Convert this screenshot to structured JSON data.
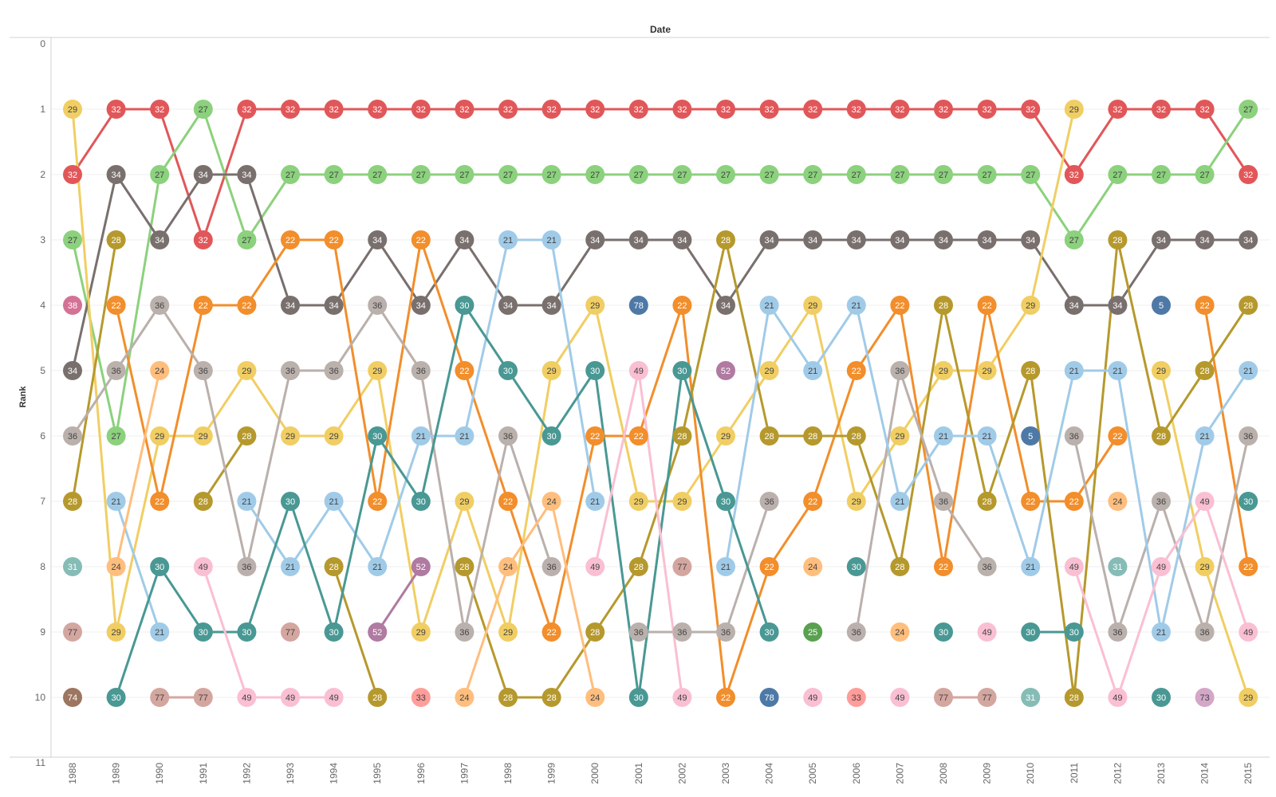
{
  "chart_data": {
    "type": "line",
    "title": "",
    "xlabel": "Date",
    "ylabel": "Rank",
    "x": [
      1988,
      1989,
      1990,
      1991,
      1992,
      1993,
      1994,
      1995,
      1996,
      1997,
      1998,
      1999,
      2000,
      2001,
      2002,
      2003,
      2004,
      2005,
      2006,
      2007,
      2008,
      2009,
      2010,
      2011,
      2012,
      2013,
      2014,
      2015
    ],
    "ylim": [
      0,
      11
    ],
    "y_reversed": true,
    "yticks": [
      0,
      1,
      2,
      3,
      4,
      5,
      6,
      7,
      8,
      9,
      10,
      11
    ],
    "grid": "horizontal",
    "point_labels": "series-id",
    "series": [
      {
        "id": "32",
        "color": "#e15759",
        "ranks": [
          2,
          1,
          1,
          3,
          1,
          1,
          1,
          1,
          1,
          1,
          1,
          1,
          1,
          1,
          1,
          1,
          1,
          1,
          1,
          1,
          1,
          1,
          1,
          2,
          1,
          1,
          1,
          2
        ]
      },
      {
        "id": "27",
        "color": "#8cd17d",
        "ranks": [
          3,
          6,
          2,
          1,
          3,
          2,
          2,
          2,
          2,
          2,
          2,
          2,
          2,
          2,
          2,
          2,
          2,
          2,
          2,
          2,
          2,
          2,
          2,
          3,
          2,
          2,
          2,
          1
        ]
      },
      {
        "id": "34",
        "color": "#79706e",
        "ranks": [
          5,
          2,
          3,
          2,
          2,
          4,
          4,
          3,
          4,
          3,
          4,
          4,
          3,
          3,
          3,
          4,
          3,
          3,
          3,
          3,
          3,
          3,
          3,
          4,
          4,
          3,
          3,
          3
        ]
      },
      {
        "id": "29",
        "color": "#f1ce63",
        "ranks": [
          1,
          9,
          6,
          6,
          5,
          6,
          6,
          5,
          9,
          7,
          9,
          5,
          4,
          7,
          7,
          6,
          5,
          4,
          7,
          6,
          5,
          5,
          4,
          1,
          null,
          5,
          8,
          10
        ]
      },
      {
        "id": "22",
        "color": "#f28e2b",
        "ranks": [
          null,
          4,
          7,
          4,
          4,
          3,
          3,
          7,
          3,
          5,
          7,
          9,
          6,
          6,
          4,
          10,
          8,
          7,
          5,
          4,
          8,
          4,
          7,
          7,
          6,
          null,
          4,
          8
        ]
      },
      {
        "id": "28",
        "color": "#b6992d",
        "ranks": [
          7,
          3,
          null,
          7,
          6,
          null,
          8,
          10,
          null,
          8,
          10,
          10,
          9,
          8,
          6,
          3,
          6,
          6,
          6,
          8,
          4,
          7,
          5,
          10,
          3,
          6,
          5,
          4
        ]
      },
      {
        "id": "36",
        "color": "#bab0ac",
        "ranks": [
          6,
          5,
          4,
          5,
          8,
          5,
          5,
          4,
          5,
          9,
          6,
          8,
          null,
          9,
          9,
          9,
          7,
          null,
          9,
          5,
          7,
          8,
          null,
          6,
          9,
          7,
          9,
          6
        ]
      },
      {
        "id": "21",
        "color": "#a0cbe8",
        "ranks": [
          null,
          7,
          9,
          null,
          7,
          8,
          7,
          8,
          6,
          6,
          3,
          3,
          7,
          null,
          null,
          8,
          4,
          5,
          4,
          7,
          6,
          6,
          8,
          5,
          5,
          9,
          6,
          5
        ]
      },
      {
        "id": "30",
        "color": "#499894",
        "ranks": [
          null,
          10,
          8,
          9,
          9,
          7,
          9,
          6,
          7,
          4,
          5,
          6,
          5,
          10,
          5,
          7,
          9,
          null,
          8,
          null,
          9,
          null,
          9,
          9,
          null,
          10,
          null,
          7
        ]
      },
      {
        "id": "24",
        "color": "#ffbe7d",
        "ranks": [
          null,
          8,
          5,
          null,
          null,
          null,
          null,
          null,
          null,
          10,
          8,
          7,
          10,
          null,
          null,
          null,
          null,
          8,
          null,
          9,
          null,
          null,
          null,
          null,
          7,
          null,
          null,
          null
        ]
      },
      {
        "id": "49",
        "color": "#fabfd2",
        "ranks": [
          null,
          null,
          null,
          8,
          10,
          10,
          10,
          null,
          null,
          null,
          null,
          null,
          8,
          5,
          10,
          null,
          null,
          10,
          null,
          10,
          null,
          9,
          null,
          8,
          10,
          8,
          7,
          9
        ]
      },
      {
        "id": "77",
        "color": "#d4a6a0",
        "ranks": [
          9,
          null,
          10,
          10,
          null,
          9,
          null,
          null,
          null,
          null,
          null,
          null,
          null,
          null,
          8,
          null,
          null,
          null,
          null,
          null,
          10,
          10,
          null,
          null,
          null,
          null,
          null,
          null
        ]
      },
      {
        "id": "52",
        "color": "#b07aa1",
        "ranks": [
          null,
          null,
          null,
          null,
          null,
          null,
          null,
          9,
          8,
          null,
          null,
          null,
          null,
          null,
          null,
          5,
          null,
          null,
          null,
          null,
          null,
          null,
          null,
          null,
          null,
          null,
          null,
          null
        ]
      },
      {
        "id": "5",
        "color": "#4e79a7",
        "ranks": [
          null,
          null,
          null,
          null,
          null,
          null,
          null,
          null,
          null,
          null,
          null,
          null,
          null,
          null,
          null,
          null,
          null,
          null,
          null,
          null,
          null,
          null,
          6,
          null,
          null,
          4,
          null,
          null
        ]
      },
      {
        "id": "31",
        "color": "#86bcb6",
        "ranks": [
          8,
          null,
          null,
          null,
          null,
          null,
          null,
          null,
          null,
          null,
          null,
          null,
          null,
          null,
          null,
          null,
          null,
          null,
          null,
          null,
          null,
          null,
          10,
          null,
          8,
          null,
          null,
          null
        ]
      },
      {
        "id": "78",
        "color": "#4e79a7",
        "ranks": [
          null,
          null,
          null,
          null,
          null,
          null,
          null,
          null,
          null,
          null,
          null,
          null,
          null,
          4,
          null,
          null,
          10,
          null,
          null,
          null,
          null,
          null,
          null,
          null,
          null,
          null,
          null,
          null
        ]
      },
      {
        "id": "33",
        "color": "#ff9d9a",
        "ranks": [
          null,
          null,
          null,
          null,
          null,
          null,
          null,
          null,
          10,
          null,
          null,
          null,
          null,
          null,
          null,
          null,
          null,
          null,
          10,
          null,
          null,
          null,
          null,
          null,
          null,
          null,
          null,
          null
        ]
      },
      {
        "id": "38",
        "color": "#d37295",
        "ranks": [
          4,
          null,
          null,
          null,
          null,
          null,
          null,
          null,
          null,
          null,
          null,
          null,
          null,
          null,
          null,
          null,
          null,
          null,
          null,
          null,
          null,
          null,
          null,
          null,
          null,
          null,
          null,
          null
        ]
      },
      {
        "id": "74",
        "color": "#9d7660",
        "ranks": [
          10,
          null,
          null,
          null,
          null,
          null,
          null,
          null,
          null,
          null,
          null,
          null,
          null,
          null,
          null,
          null,
          null,
          null,
          null,
          null,
          null,
          null,
          null,
          null,
          null,
          null,
          null,
          null
        ]
      },
      {
        "id": "25",
        "color": "#59a14f",
        "ranks": [
          null,
          null,
          null,
          null,
          null,
          null,
          null,
          null,
          null,
          null,
          null,
          null,
          null,
          null,
          null,
          null,
          null,
          9,
          null,
          null,
          null,
          null,
          null,
          null,
          null,
          null,
          null,
          null
        ]
      },
      {
        "id": "73",
        "color": "#d4a6c8",
        "ranks": [
          null,
          null,
          null,
          null,
          null,
          null,
          null,
          null,
          null,
          null,
          null,
          null,
          null,
          null,
          null,
          null,
          null,
          null,
          null,
          null,
          null,
          null,
          null,
          null,
          null,
          null,
          10,
          null
        ]
      }
    ]
  }
}
